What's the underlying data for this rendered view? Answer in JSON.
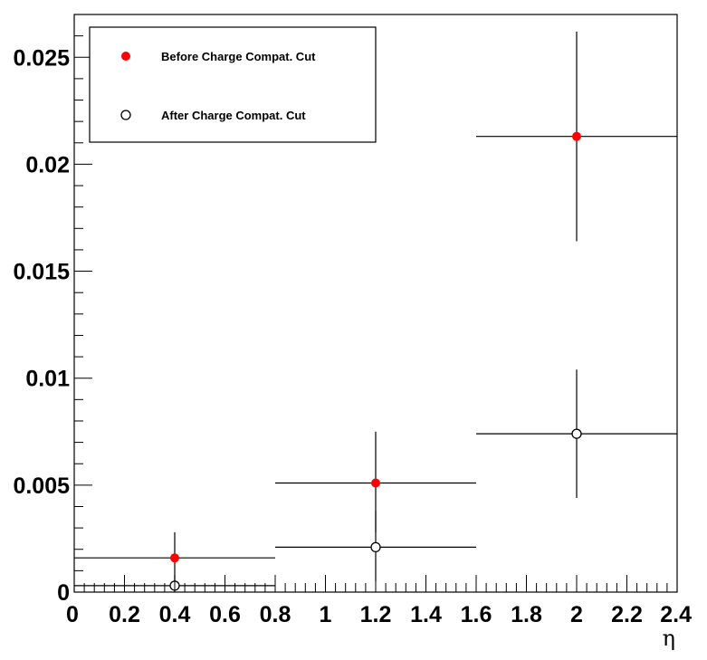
{
  "chart_data": {
    "type": "scatter",
    "title": "",
    "xlabel": "η",
    "ylabel": "",
    "xlim": [
      0,
      2.4
    ],
    "ylim": [
      0,
      0.027
    ],
    "grid": false,
    "legend_position": "top-left",
    "x_ticks": [
      {
        "value": 0,
        "label": "0"
      },
      {
        "value": 0.2,
        "label": "0.2"
      },
      {
        "value": 0.4,
        "label": "0.4"
      },
      {
        "value": 0.6,
        "label": "0.6"
      },
      {
        "value": 0.8,
        "label": "0.8"
      },
      {
        "value": 1.0,
        "label": "1"
      },
      {
        "value": 1.2,
        "label": "1.2"
      },
      {
        "value": 1.4,
        "label": "1.4"
      },
      {
        "value": 1.6,
        "label": "1.6"
      },
      {
        "value": 1.8,
        "label": "1.8"
      },
      {
        "value": 2.0,
        "label": "2"
      },
      {
        "value": 2.2,
        "label": "2.2"
      },
      {
        "value": 2.4,
        "label": "2.4"
      }
    ],
    "y_ticks": [
      {
        "value": 0,
        "label": "0"
      },
      {
        "value": 0.005,
        "label": "0.005"
      },
      {
        "value": 0.01,
        "label": "0.01"
      },
      {
        "value": 0.015,
        "label": "0.015"
      },
      {
        "value": 0.02,
        "label": "0.02"
      },
      {
        "value": 0.025,
        "label": "0.025"
      }
    ],
    "series": [
      {
        "name": "Before Charge Compat. Cut",
        "marker": "filled-circle",
        "color": "#ff0000",
        "points": [
          {
            "x": 0.4,
            "xlow": 0.0,
            "xhigh": 0.8,
            "y": 0.0016,
            "ylow": 0.0004,
            "yhigh": 0.0028
          },
          {
            "x": 1.2,
            "xlow": 0.8,
            "xhigh": 1.6,
            "y": 0.0051,
            "ylow": 0.0028,
            "yhigh": 0.0075
          },
          {
            "x": 2.0,
            "xlow": 1.6,
            "xhigh": 2.4,
            "y": 0.0213,
            "ylow": 0.0164,
            "yhigh": 0.0262
          }
        ]
      },
      {
        "name": "After Charge Compat. Cut",
        "marker": "open-circle",
        "color": "#000000",
        "points": [
          {
            "x": 0.4,
            "xlow": 0.0,
            "xhigh": 0.8,
            "y": 0.0003,
            "ylow": 0.0,
            "yhigh": 0.0008
          },
          {
            "x": 1.2,
            "xlow": 0.8,
            "xhigh": 1.6,
            "y": 0.0021,
            "ylow": 0.0005,
            "yhigh": 0.0038
          },
          {
            "x": 2.0,
            "xlow": 1.6,
            "xhigh": 2.4,
            "y": 0.0074,
            "ylow": 0.0044,
            "yhigh": 0.0104
          }
        ]
      }
    ]
  }
}
